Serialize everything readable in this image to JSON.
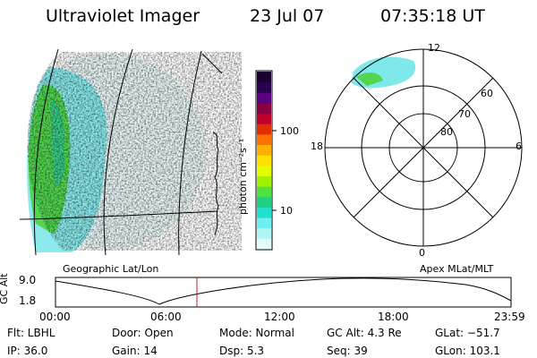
{
  "header": {
    "instrument": "Ultraviolet Imager",
    "date": "23 Jul 07",
    "time": "07:35:18 UT"
  },
  "colorbar": {
    "unit_label": "photon cm⁻²s⁻¹",
    "ticks": [
      "100",
      "10"
    ],
    "colors": [
      "#1a0030",
      "#2a0050",
      "#5a0080",
      "#8a0040",
      "#c0002a",
      "#e03000",
      "#ff7000",
      "#ffb000",
      "#ffe000",
      "#e0ff00",
      "#a0f000",
      "#50e040",
      "#20d080",
      "#20e0d0",
      "#70eef0",
      "#b0f4f4",
      "#e4fafa"
    ]
  },
  "geo_panel": {
    "label": "Geographic Lat/Lon"
  },
  "polar_panel": {
    "label": "Apex MLat/MLT",
    "mlt_labels": {
      "top": "12",
      "left": "18",
      "right": "6",
      "bottom": "0"
    },
    "lat_labels": [
      "60",
      "70",
      "80"
    ]
  },
  "altitude_plot": {
    "ylabel": "GC Alt",
    "yticks": [
      "9.0",
      "1.8"
    ],
    "xticks": [
      "00:00",
      "06:00",
      "12:00",
      "18:00",
      "23:59"
    ],
    "current_time_marker_color": "#c02020"
  },
  "status": {
    "flt": "Flt: LBHL",
    "ip": "IP: 36.0",
    "door": "Door: Open",
    "gain": "Gain: 14",
    "mode": "Mode: Normal",
    "dsp": "Dsp:    5.3",
    "gc_alt": "GC Alt: 4.3 Re",
    "seq": "Seq: 39",
    "glat": "GLat: −51.7",
    "glon": "GLon: 103.1"
  }
}
